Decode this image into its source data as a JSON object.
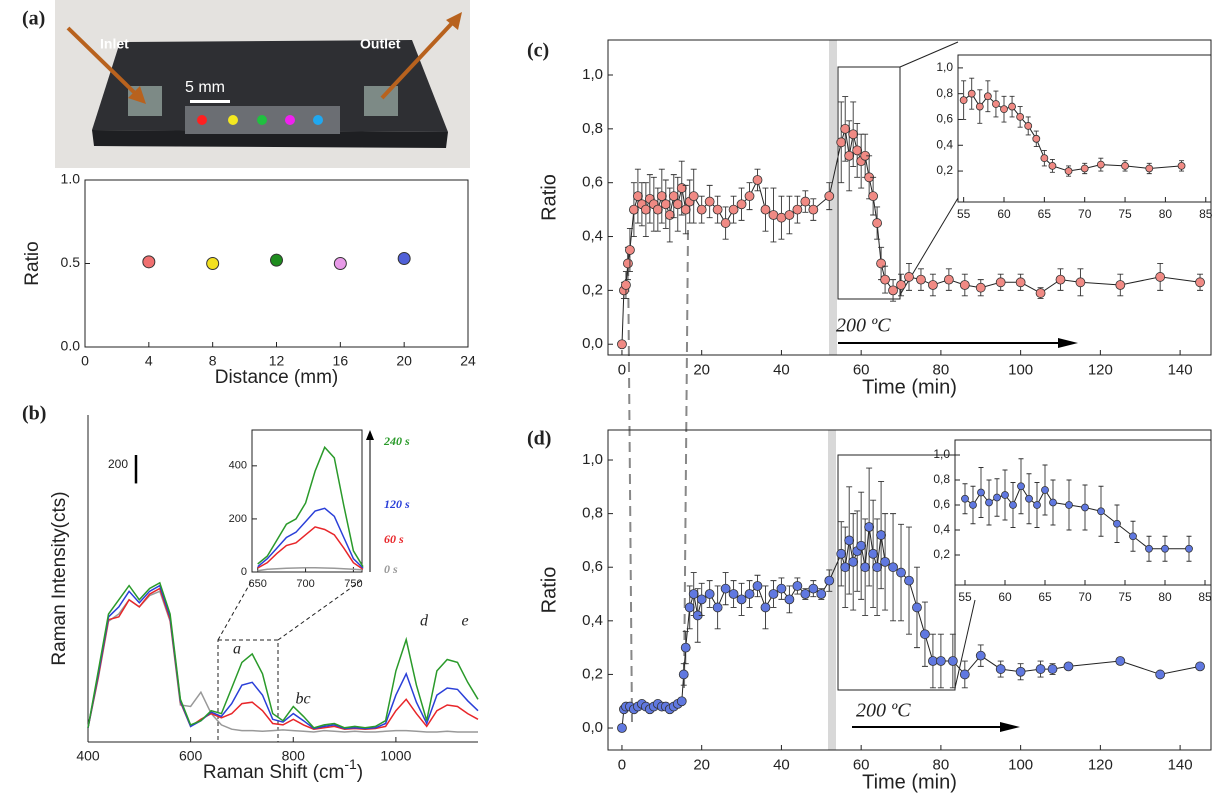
{
  "photo": {
    "labels": [
      "Inlet",
      "Outlet",
      "5 mm"
    ]
  },
  "chart_data": [
    {
      "type": "scatter",
      "panel": "(a)",
      "xlabel": "Distance (mm)",
      "ylabel": "Ratio",
      "xlim": [
        0,
        24
      ],
      "ylim": [
        0,
        1
      ],
      "xticks": [
        0,
        4,
        8,
        12,
        16,
        20,
        24
      ],
      "yticks": [
        {
          "value": 0,
          "label": "0.0"
        },
        {
          "value": 0.5,
          "label": "0.5"
        },
        {
          "value": 1,
          "label": "1.0"
        }
      ],
      "x": [
        4,
        8,
        12,
        16,
        20
      ],
      "values": [
        0.51,
        0.5,
        0.52,
        0.5,
        0.53
      ],
      "colors": [
        "#f07070",
        "#f2e020",
        "#1e8c1e",
        "#e89ae8",
        "#5060d8"
      ]
    },
    {
      "type": "line",
      "panel": "(b)",
      "xlabel": [
        "Raman Shift (cm",
        "-1",
        ")"
      ],
      "ylabel": "Raman Intensity(cts)",
      "xlim": [
        400,
        1160
      ],
      "ylim": [
        0,
        2300
      ],
      "xticks": [
        400,
        600,
        800,
        1000
      ],
      "scale_bar": 200,
      "peak_labels": [
        "a",
        "bc",
        "d",
        "e"
      ],
      "x": [
        400,
        420,
        440,
        460,
        480,
        500,
        520,
        540,
        560,
        580,
        600,
        620,
        640,
        660,
        680,
        700,
        720,
        740,
        760,
        780,
        800,
        820,
        840,
        860,
        880,
        900,
        920,
        940,
        960,
        980,
        1000,
        1020,
        1040,
        1060,
        1080,
        1100,
        1120,
        1140,
        1160
      ],
      "series": [
        {
          "name": "0 s",
          "color": "#999999",
          "values": [
            100,
            450,
            850,
            900,
            1000,
            950,
            1030,
            1060,
            850,
            260,
            250,
            350,
            200,
            120,
            90,
            80,
            80,
            75,
            80,
            85,
            80,
            75,
            70,
            80,
            75,
            70,
            75,
            70,
            70,
            75,
            80,
            80,
            75,
            70,
            70,
            75,
            70,
            70,
            70
          ]
        },
        {
          "name": "60 s",
          "color": "#e8262a",
          "values": [
            100,
            460,
            860,
            880,
            1000,
            950,
            1040,
            1080,
            860,
            280,
            110,
            160,
            200,
            170,
            200,
            270,
            280,
            220,
            130,
            120,
            160,
            120,
            90,
            100,
            110,
            90,
            95,
            90,
            95,
            110,
            220,
            300,
            200,
            110,
            220,
            260,
            250,
            200,
            160
          ]
        },
        {
          "name": "120 s",
          "color": "#2a3fd8",
          "values": [
            100,
            480,
            880,
            950,
            1060,
            980,
            1060,
            1100,
            880,
            290,
            110,
            150,
            210,
            180,
            270,
            400,
            420,
            330,
            160,
            140,
            200,
            150,
            95,
            110,
            120,
            95,
            100,
            95,
            100,
            130,
            330,
            480,
            280,
            130,
            330,
            380,
            370,
            290,
            220
          ]
        },
        {
          "name": "240 s",
          "color": "#2a9a2a",
          "values": [
            100,
            500,
            900,
            1000,
            1100,
            1000,
            1080,
            1120,
            900,
            300,
            120,
            150,
            220,
            200,
            380,
            560,
            620,
            480,
            200,
            150,
            250,
            180,
            100,
            120,
            130,
            100,
            110,
            100,
            110,
            150,
            500,
            720,
            400,
            150,
            500,
            580,
            560,
            420,
            300
          ]
        }
      ],
      "inset": {
        "xlim": [
          644,
          759
        ],
        "ylim": [
          0,
          535
        ],
        "xticks": [
          650,
          700,
          750
        ],
        "yticks": [
          0,
          200,
          400
        ],
        "x": [
          650,
          660,
          670,
          680,
          690,
          700,
          710,
          720,
          730,
          740,
          750,
          760
        ],
        "series": [
          {
            "color": "#999999",
            "values": [
              5,
              10,
              12,
              14,
              15,
              16,
              16,
              15,
              14,
              12,
              10,
              8
            ]
          },
          {
            "color": "#e8262a",
            "values": [
              15,
              35,
              70,
              100,
              110,
              140,
              170,
              160,
              140,
              90,
              35,
              10
            ]
          },
          {
            "color": "#2a3fd8",
            "values": [
              20,
              50,
              90,
              130,
              150,
              190,
              230,
              240,
              210,
              130,
              50,
              15
            ]
          },
          {
            "color": "#2a9a2a",
            "values": [
              30,
              60,
              120,
              180,
              200,
              260,
              380,
              470,
              430,
              250,
              80,
              20
            ]
          }
        ]
      }
    },
    {
      "type": "errorbar",
      "panel": "(c)",
      "xlabel": "Time (min)",
      "ylabel": "Ratio",
      "annotation": "200 ºC",
      "color": "#f08a84",
      "xlim": [
        -3.5,
        147.75
      ],
      "ylim": [
        -0.04,
        1.13
      ],
      "xticks": [
        0,
        20,
        40,
        60,
        80,
        100,
        120,
        140
      ],
      "yticks": [
        {
          "value": 0,
          "label": "0,0"
        },
        {
          "value": 0.2,
          "label": "0,2"
        },
        {
          "value": 0.4,
          "label": "0,4"
        },
        {
          "value": 0.6,
          "label": "0,6"
        },
        {
          "value": 0.8,
          "label": "0,8"
        },
        {
          "value": 1,
          "label": "1,0"
        }
      ],
      "x": [
        0,
        0.5,
        1,
        1.5,
        2,
        3,
        4,
        5,
        6,
        7,
        8,
        9,
        10,
        11,
        12,
        13,
        14,
        15,
        16,
        17,
        18,
        20,
        22,
        24,
        26,
        28,
        30,
        32,
        34,
        36,
        38,
        40,
        42,
        44,
        46,
        48,
        52,
        55,
        56,
        57,
        58,
        59,
        60,
        61,
        62,
        63,
        64,
        65,
        66,
        68,
        70,
        72,
        75,
        78,
        82,
        86,
        90,
        95,
        100,
        105,
        110,
        115,
        125,
        135,
        145
      ],
      "values": [
        0,
        0.2,
        0.22,
        0.3,
        0.35,
        0.5,
        0.55,
        0.52,
        0.5,
        0.54,
        0.52,
        0.5,
        0.55,
        0.52,
        0.48,
        0.55,
        0.52,
        0.58,
        0.5,
        0.53,
        0.55,
        0.5,
        0.53,
        0.5,
        0.45,
        0.5,
        0.52,
        0.55,
        0.61,
        0.5,
        0.48,
        0.47,
        0.48,
        0.5,
        0.53,
        0.5,
        0.55,
        0.75,
        0.8,
        0.7,
        0.78,
        0.72,
        0.68,
        0.7,
        0.62,
        0.55,
        0.45,
        0.3,
        0.24,
        0.2,
        0.22,
        0.25,
        0.24,
        0.22,
        0.24,
        0.22,
        0.21,
        0.23,
        0.23,
        0.19,
        0.24,
        0.23,
        0.22,
        0.25,
        0.23
      ],
      "errors": [
        0,
        0.03,
        0.05,
        0.06,
        0.08,
        0.1,
        0.1,
        0.08,
        0.1,
        0.09,
        0.1,
        0.08,
        0.1,
        0.09,
        0.1,
        0.08,
        0.1,
        0.1,
        0.09,
        0.08,
        0.1,
        0.05,
        0.06,
        0.05,
        0.06,
        0.05,
        0.06,
        0.05,
        0.04,
        0.08,
        0.1,
        0.08,
        0.07,
        0.05,
        0.04,
        0.04,
        0.05,
        0.15,
        0.12,
        0.13,
        0.12,
        0.1,
        0.1,
        0.08,
        0.08,
        0.07,
        0.06,
        0.06,
        0.05,
        0.04,
        0.04,
        0.05,
        0.04,
        0.04,
        0.04,
        0.04,
        0.03,
        0.03,
        0.03,
        0.02,
        0.04,
        0.05,
        0.04,
        0.05,
        0.03
      ],
      "inset": {
        "xlim": [
          54.3,
          85.65
        ],
        "ylim": [
          -0.04,
          1.1
        ],
        "xticks": [
          55,
          60,
          65,
          70,
          75,
          80,
          85
        ],
        "yticks": [
          {
            "value": 0.2,
            "label": "0,2"
          },
          {
            "value": 0.4,
            "label": "0,4"
          },
          {
            "value": 0.6,
            "label": "0,6"
          },
          {
            "value": 0.8,
            "label": "0,8"
          },
          {
            "value": 1,
            "label": "1,0"
          }
        ]
      }
    },
    {
      "type": "errorbar",
      "panel": "(d)",
      "xlabel": "Time (min)",
      "ylabel": "Ratio",
      "annotation": "200 ºC",
      "color": "#6078e0",
      "xlim": [
        -3.5,
        147.75
      ],
      "ylim": [
        -0.082,
        1.112
      ],
      "xticks": [
        0,
        20,
        40,
        60,
        80,
        100,
        120,
        140
      ],
      "yticks": [
        {
          "value": 0,
          "label": "0,0"
        },
        {
          "value": 0.2,
          "label": "0,2"
        },
        {
          "value": 0.4,
          "label": "0,4"
        },
        {
          "value": 0.6,
          "label": "0,6"
        },
        {
          "value": 0.8,
          "label": "0,8"
        },
        {
          "value": 1,
          "label": "1,0"
        }
      ],
      "x": [
        0,
        0.5,
        1,
        2,
        3,
        4,
        5,
        6,
        7,
        8,
        9,
        10,
        11,
        12,
        13,
        14,
        15,
        15.5,
        16,
        17,
        18,
        19,
        20,
        22,
        24,
        26,
        28,
        30,
        32,
        34,
        36,
        38,
        40,
        42,
        44,
        46,
        48,
        50,
        52,
        55,
        56,
        57,
        58,
        59,
        60,
        61,
        62,
        63,
        64,
        65,
        66,
        68,
        70,
        72,
        74,
        76,
        78,
        80,
        83,
        86,
        90,
        95,
        100,
        105,
        108,
        112,
        125,
        135,
        145
      ],
      "values": [
        0,
        0.07,
        0.08,
        0.08,
        0.07,
        0.08,
        0.09,
        0.08,
        0.07,
        0.08,
        0.09,
        0.08,
        0.08,
        0.07,
        0.08,
        0.09,
        0.1,
        0.2,
        0.3,
        0.45,
        0.5,
        0.42,
        0.48,
        0.5,
        0.45,
        0.52,
        0.5,
        0.48,
        0.5,
        0.53,
        0.45,
        0.5,
        0.52,
        0.48,
        0.53,
        0.5,
        0.52,
        0.5,
        0.55,
        0.65,
        0.6,
        0.7,
        0.62,
        0.66,
        0.68,
        0.6,
        0.75,
        0.65,
        0.6,
        0.72,
        0.62,
        0.6,
        0.58,
        0.55,
        0.45,
        0.35,
        0.25,
        0.25,
        0.25,
        0.2,
        0.27,
        0.22,
        0.21,
        0.22,
        0.22,
        0.23,
        0.25,
        0.2,
        0.23
      ],
      "errors": [
        0,
        0.01,
        0.01,
        0.01,
        0.01,
        0.01,
        0.01,
        0.01,
        0.01,
        0.01,
        0.01,
        0.01,
        0.01,
        0.01,
        0.01,
        0.01,
        0.01,
        0.04,
        0.06,
        0.08,
        0.08,
        0.1,
        0.06,
        0.05,
        0.08,
        0.06,
        0.05,
        0.06,
        0.05,
        0.04,
        0.08,
        0.05,
        0.04,
        0.05,
        0.03,
        0.02,
        0.03,
        0.02,
        0.04,
        0.12,
        0.15,
        0.2,
        0.18,
        0.15,
        0.2,
        0.18,
        0.22,
        0.2,
        0.18,
        0.2,
        0.18,
        0.2,
        0.18,
        0.2,
        0.15,
        0.12,
        0.1,
        0.1,
        0.1,
        0.05,
        0.04,
        0.03,
        0.03,
        0.03,
        0.02,
        0.01,
        0.01,
        0.01,
        0.01
      ],
      "inset": {
        "xlim": [
          53.75,
          85.75
        ],
        "ylim": [
          -0.04,
          1.12
        ],
        "xticks": [
          55,
          60,
          65,
          70,
          75,
          80,
          85
        ],
        "yticks": [
          {
            "value": 0.2,
            "label": "0,2"
          },
          {
            "value": 0.4,
            "label": "0,4"
          },
          {
            "value": 0.6,
            "label": "0,6"
          },
          {
            "value": 0.8,
            "label": "0,8"
          },
          {
            "value": 1,
            "label": "1,0"
          }
        ]
      }
    }
  ]
}
